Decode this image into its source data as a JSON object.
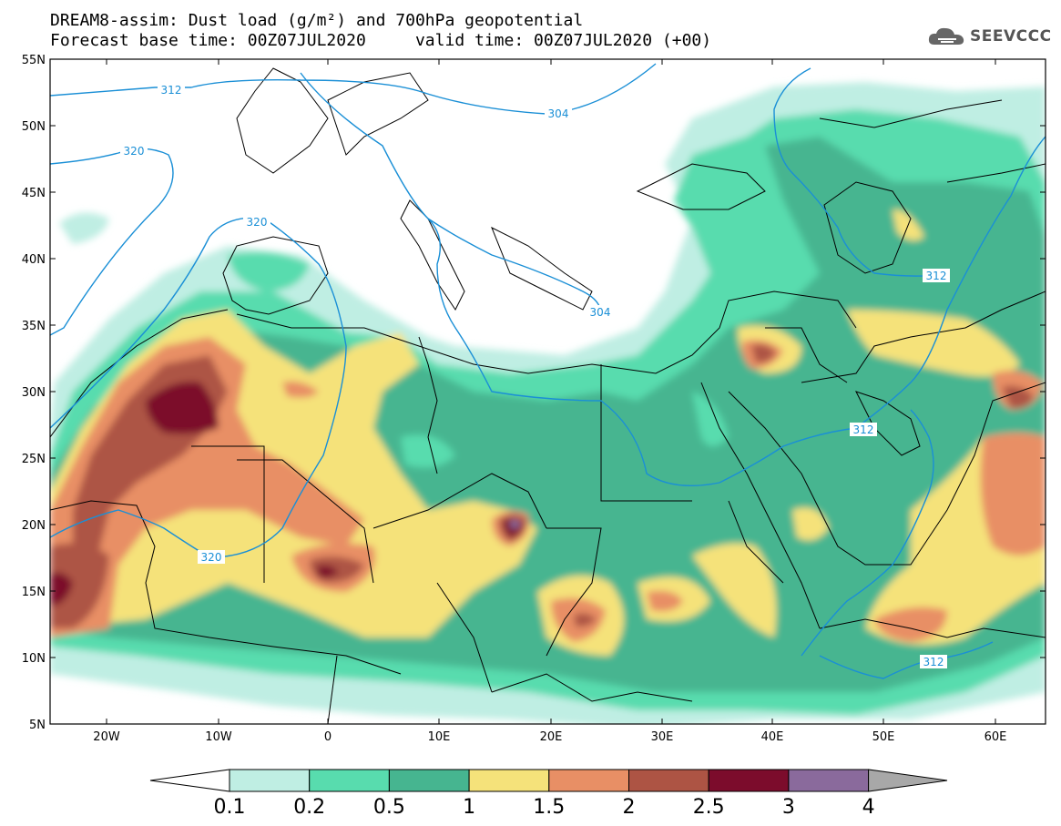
{
  "title_line1": "DREAM8-assim: Dust load (g/m²) and 700hPa geopotential",
  "title_line2": "Forecast base time: 00Z07JUL2020     valid time: 00Z07JUL2020 (+00)",
  "logo": {
    "text": "SEEVCCC",
    "icon": "cloud-icon"
  },
  "lat_labels": [
    "55N",
    "50N",
    "45N",
    "40N",
    "35N",
    "30N",
    "25N",
    "20N",
    "15N",
    "10N",
    "5N"
  ],
  "lon_labels": [
    "20W",
    "10W",
    "0",
    "10E",
    "20E",
    "30E",
    "40E",
    "50E",
    "60E"
  ],
  "contour_labels": [
    "312",
    "304",
    "320",
    "320",
    "320",
    "304",
    "312",
    "312",
    "312"
  ],
  "colorbar": {
    "labels": [
      "0.1",
      "0.2",
      "0.5",
      "1",
      "1.5",
      "2",
      "2.5",
      "3",
      "4"
    ],
    "colors": [
      "#bfeee3",
      "#58dcae",
      "#46b590",
      "#f5e27a",
      "#e88f65",
      "#ad5444",
      "#7c0c2c",
      "#8a6a9c",
      "#a8a8a8"
    ]
  }
}
